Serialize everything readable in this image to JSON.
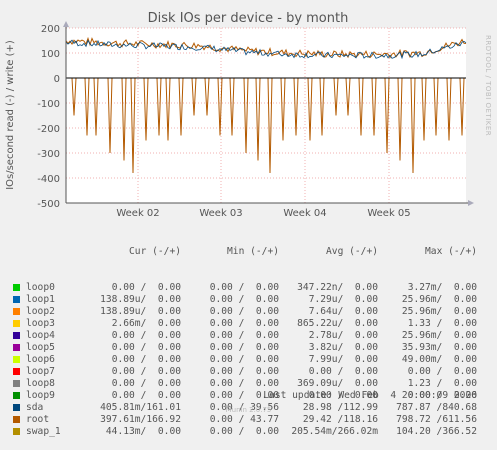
{
  "chart_data": {
    "type": "line",
    "title": "Disk IOs per device - by month",
    "ylabel": "IOs/second read (-) / write (+)",
    "ylim": [
      -500,
      200
    ],
    "yticks": [
      200,
      100,
      0,
      -100,
      -200,
      -300,
      -400,
      -500
    ],
    "xticks": [
      "Week 02",
      "Week 03",
      "Week 04",
      "Week 05"
    ],
    "grid": true,
    "write_baseline": [
      150,
      140,
      135,
      130,
      110,
      100,
      95,
      95,
      100,
      150
    ],
    "read_spikes": [
      -150,
      -230,
      -230,
      -300,
      -330,
      -380,
      -250,
      -230,
      -250,
      -230,
      -150
    ]
  },
  "side_label": "RRDTOOL / TOBI OETIKER",
  "legend": {
    "headers": {
      "cur": "Cur (-/+)",
      "min": "Min (-/+)",
      "avg": "Avg (-/+)",
      "max": "Max (-/+)"
    },
    "rows": [
      {
        "name": "loop0",
        "color": "#00cc00",
        "cur": "0.00 /  0.00",
        "min": "0.00 /  0.00",
        "avg": "347.22n/  0.00",
        "max": "3.27m/  0.00"
      },
      {
        "name": "loop1",
        "color": "#0066b3",
        "cur": "138.89u/  0.00",
        "min": "0.00 /  0.00",
        "avg": "7.29u/  0.00",
        "max": "25.96m/  0.00"
      },
      {
        "name": "loop2",
        "color": "#ff8000",
        "cur": "138.89u/  0.00",
        "min": "0.00 /  0.00",
        "avg": "7.64u/  0.00",
        "max": "25.96m/  0.00"
      },
      {
        "name": "loop3",
        "color": "#ffcc00",
        "cur": "2.66m/  0.00",
        "min": "0.00 /  0.00",
        "avg": "865.22u/  0.00",
        "max": "1.33 /  0.00"
      },
      {
        "name": "loop4",
        "color": "#330099",
        "cur": "0.00 /  0.00",
        "min": "0.00 /  0.00",
        "avg": "2.78u/  0.00",
        "max": "25.96m/  0.00"
      },
      {
        "name": "loop5",
        "color": "#990099",
        "cur": "0.00 /  0.00",
        "min": "0.00 /  0.00",
        "avg": "3.82u/  0.00",
        "max": "35.93m/  0.00"
      },
      {
        "name": "loop6",
        "color": "#ccff00",
        "cur": "0.00 /  0.00",
        "min": "0.00 /  0.00",
        "avg": "7.99u/  0.00",
        "max": "49.00m/  0.00"
      },
      {
        "name": "loop7",
        "color": "#ff0000",
        "cur": "0.00 /  0.00",
        "min": "0.00 /  0.00",
        "avg": "0.00 /  0.00",
        "max": "0.00 /  0.00"
      },
      {
        "name": "loop8",
        "color": "#808080",
        "cur": "0.00 /  0.00",
        "min": "0.00 /  0.00",
        "avg": "369.09u/  0.00",
        "max": "1.23 /  0.00"
      },
      {
        "name": "loop9",
        "color": "#008f00",
        "cur": "0.00 /  0.00",
        "min": "0.00 /  0.00",
        "avg": "0.00 /  0.00",
        "max": "0.00 /  0.00"
      },
      {
        "name": "sda",
        "color": "#00487d",
        "cur": "405.81m/161.01",
        "min": "0.00 / 39.56",
        "avg": "28.98 /112.99",
        "max": "787.87 /840.68"
      },
      {
        "name": "root",
        "color": "#b35a00",
        "cur": "397.61m/166.92",
        "min": "0.00 / 43.77",
        "avg": "29.42 /118.16",
        "max": "798.72 /611.56"
      },
      {
        "name": "swap_1",
        "color": "#b38f00",
        "cur": "44.13m/  0.00",
        "min": "0.00 /  0.00",
        "avg": "205.54m/266.02m",
        "max": "104.20 /366.52"
      }
    ]
  },
  "footer": {
    "last_update": "Last update: Wed Feb  4 20:00:09 2026"
  },
  "munin_version": "Munin 2.0.75"
}
